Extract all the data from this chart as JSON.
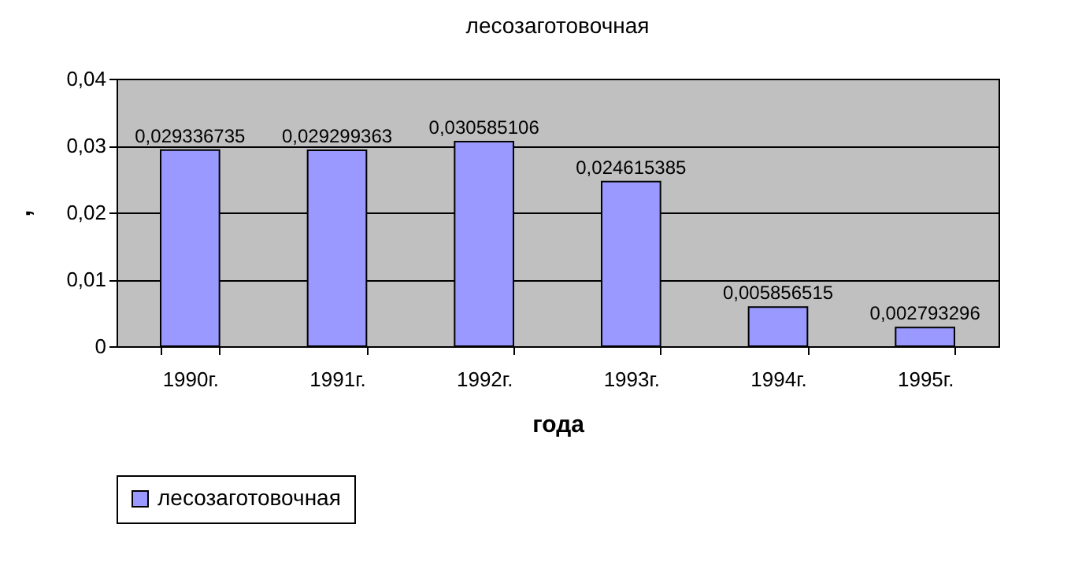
{
  "chart_data": {
    "type": "bar",
    "title": "лесозаготовочная",
    "xlabel": "года",
    "ylabel": ",",
    "categories": [
      "1990г.",
      "1991г.",
      "1992г.",
      "1993г.",
      "1994г.",
      "1995г."
    ],
    "series": [
      {
        "name": "лесозаготовочная",
        "color": "#9999ff",
        "values": [
          0.029336735,
          0.029299363,
          0.030585106,
          0.024615385,
          0.005856515,
          0.002793296
        ],
        "value_labels": [
          "0,029336735",
          "0,029299363",
          "0,030585106",
          "0,024615385",
          "0,005856515",
          "0,002793296"
        ]
      }
    ],
    "ylim": [
      0,
      0.04
    ],
    "yticks": [
      {
        "value": 0,
        "label": "0"
      },
      {
        "value": 0.01,
        "label": "0,01"
      },
      {
        "value": 0.02,
        "label": "0,02"
      },
      {
        "value": 0.03,
        "label": "0,03"
      },
      {
        "value": 0.04,
        "label": "0,04"
      }
    ],
    "grid": "y",
    "legend": "bottom"
  }
}
